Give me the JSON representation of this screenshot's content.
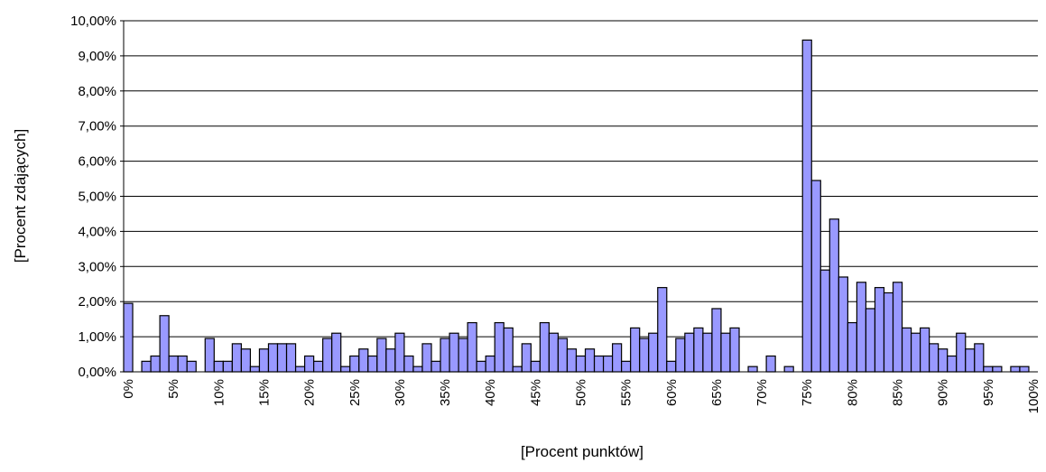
{
  "chart_data": {
    "type": "bar",
    "x_label": "[Procent punktów]",
    "y_label": "[Procent zdających]",
    "categories": [
      "0%",
      null,
      null,
      null,
      null,
      "5%",
      null,
      null,
      null,
      null,
      "10%",
      null,
      null,
      null,
      null,
      "15%",
      null,
      null,
      null,
      null,
      "20%",
      null,
      null,
      null,
      null,
      "25%",
      null,
      null,
      null,
      null,
      "30%",
      null,
      null,
      null,
      null,
      "35%",
      null,
      null,
      null,
      null,
      "40%",
      null,
      null,
      null,
      null,
      "45%",
      null,
      null,
      null,
      null,
      "50%",
      null,
      null,
      null,
      null,
      "55%",
      null,
      null,
      null,
      null,
      "60%",
      null,
      null,
      null,
      null,
      "65%",
      null,
      null,
      null,
      null,
      "70%",
      null,
      null,
      null,
      null,
      "75%",
      null,
      null,
      null,
      null,
      "80%",
      null,
      null,
      null,
      null,
      "85%",
      null,
      null,
      null,
      null,
      "90%",
      null,
      null,
      null,
      null,
      "95%",
      null,
      null,
      null,
      null,
      "100%"
    ],
    "values": [
      1.95,
      0,
      0.3,
      0.45,
      1.6,
      0.45,
      0.45,
      0.3,
      0,
      0.95,
      0.3,
      0.3,
      0.8,
      0.65,
      0.15,
      0.65,
      0.8,
      0.8,
      0.8,
      0.15,
      0.45,
      0.3,
      0.95,
      1.1,
      0.15,
      0.45,
      0.65,
      0.45,
      0.95,
      0.65,
      1.1,
      0.45,
      0.15,
      0.8,
      0.3,
      0.95,
      1.1,
      0.95,
      1.4,
      0.3,
      0.45,
      1.4,
      1.25,
      0.15,
      0.8,
      0.3,
      1.4,
      1.1,
      0.95,
      0.65,
      0.45,
      0.65,
      0.45,
      0.45,
      0.8,
      0.3,
      1.25,
      0.95,
      1.1,
      2.4,
      0.3,
      0.95,
      1.1,
      1.25,
      1.1,
      1.8,
      1.1,
      1.25,
      0,
      0.15,
      0,
      0.45,
      0,
      0.15,
      0,
      9.45,
      5.45,
      2.9,
      4.35,
      2.7,
      1.4,
      2.55,
      1.8,
      2.4,
      2.25,
      2.55,
      1.25,
      1.1,
      1.25,
      0.8,
      0.65,
      0.45,
      1.1,
      0.65,
      0.8,
      0.15,
      0.15,
      0,
      0.15,
      0.15,
      0
    ],
    "color": "#9999ff",
    "ylim": [
      0,
      10
    ],
    "yticks": [
      {
        "value": 0,
        "label": "0,00%"
      },
      {
        "value": 1,
        "label": "1,00%"
      },
      {
        "value": 2,
        "label": "2,00%"
      },
      {
        "value": 3,
        "label": "3,00%"
      },
      {
        "value": 4,
        "label": "4,00%"
      },
      {
        "value": 5,
        "label": "5,00%"
      },
      {
        "value": 6,
        "label": "6,00%"
      },
      {
        "value": 7,
        "label": "7,00%"
      },
      {
        "value": 8,
        "label": "8,00%"
      },
      {
        "value": 9,
        "label": "9,00%"
      },
      {
        "value": 10,
        "label": "10,00%"
      }
    ],
    "grid": true
  }
}
